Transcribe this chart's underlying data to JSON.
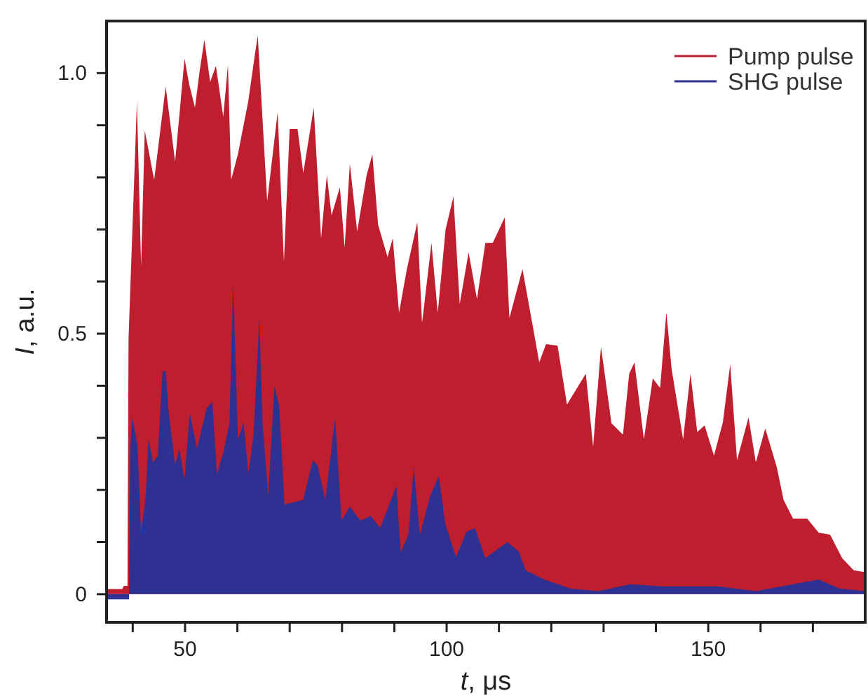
{
  "chart_data": {
    "type": "area",
    "xlabel": "t, μs",
    "ylabel": "I, a.u.",
    "xlim": [
      35,
      180
    ],
    "ylim": [
      -0.054,
      1.1
    ],
    "xticks": [
      {
        "value": 40,
        "label": null
      },
      50,
      {
        "value": 60,
        "label": null
      },
      {
        "value": 70,
        "label": null
      },
      {
        "value": 80,
        "label": null
      },
      {
        "value": 90,
        "label": null
      },
      100,
      {
        "value": 110,
        "label": null
      },
      {
        "value": 120,
        "label": null
      },
      {
        "value": 130,
        "label": null
      },
      {
        "value": 140,
        "label": null
      },
      150,
      {
        "value": 160,
        "label": null
      },
      {
        "value": 170,
        "label": null
      }
    ],
    "yticks": [
      0,
      {
        "value": 0.1,
        "label": null
      },
      {
        "value": 0.2,
        "label": null
      },
      {
        "value": 0.3,
        "label": null
      },
      {
        "value": 0.4,
        "label": null
      },
      0.5,
      {
        "value": 0.6,
        "label": null
      },
      {
        "value": 0.7,
        "label": null
      },
      {
        "value": 0.8,
        "label": null
      },
      {
        "value": 0.9,
        "label": null
      },
      {
        "value": 1,
        "label": "1.0"
      }
    ],
    "grid": false,
    "legend": "top right",
    "series": [
      {
        "name": "Pump pulse",
        "color": "#be1e2d",
        "x": [
          35,
          38.0,
          38.3,
          39.0,
          39.2,
          40.8,
          41.6,
          42.3,
          44.1,
          46.3,
          48.1,
          49.9,
          50.8,
          51.9,
          52.8,
          53.7,
          54.8,
          55.9,
          57.3,
          58.2,
          58.8,
          60.1,
          62.1,
          63.3,
          63.9,
          65.7,
          67.7,
          68.9,
          70.0,
          71.5,
          72.6,
          74.6,
          76.0,
          77.1,
          78.0,
          79.6,
          80.5,
          81.5,
          82.9,
          84.7,
          85.8,
          86.9,
          88.7,
          89.7,
          90.9,
          92.4,
          94.4,
          95.3,
          97.1,
          98.3,
          99.8,
          101.3,
          102.5,
          104.2,
          105.8,
          107.4,
          108.8,
          111.1,
          112.0,
          114.5,
          117.7,
          119.0,
          121.2,
          123.0,
          126.6,
          128.0,
          129.5,
          131.5,
          133.7,
          134.9,
          135.9,
          137.7,
          139.4,
          140.8,
          142.0,
          143.0,
          145.2,
          146.6,
          147.9,
          149.3,
          151.1,
          152.8,
          154.2,
          155.5,
          157.7,
          159.1,
          160.9,
          163.1,
          164.4,
          166.2,
          168.9,
          171.1,
          173.3,
          175.6,
          177.8,
          180.0
        ],
        "values": [
          0.01,
          0.01,
          0.016,
          0.016,
          0.49,
          0.945,
          0.63,
          0.89,
          0.795,
          0.974,
          0.83,
          1.028,
          0.978,
          0.934,
          1.005,
          1.064,
          0.983,
          1.014,
          0.916,
          1.016,
          0.795,
          0.844,
          0.947,
          1.032,
          1.072,
          0.754,
          0.925,
          0.638,
          0.893,
          0.893,
          0.808,
          0.934,
          0.683,
          0.804,
          0.727,
          0.781,
          0.665,
          0.826,
          0.696,
          0.804,
          0.844,
          0.709,
          0.647,
          0.683,
          0.54,
          0.624,
          0.714,
          0.52,
          0.674,
          0.54,
          0.7,
          0.763,
          0.557,
          0.656,
          0.566,
          0.674,
          0.674,
          0.723,
          0.53,
          0.624,
          0.445,
          0.48,
          0.477,
          0.364,
          0.423,
          0.283,
          0.475,
          0.328,
          0.306,
          0.423,
          0.445,
          0.297,
          0.414,
          0.396,
          0.541,
          0.432,
          0.297,
          0.423,
          0.311,
          0.324,
          0.266,
          0.33,
          0.441,
          0.257,
          0.339,
          0.253,
          0.318,
          0.244,
          0.181,
          0.145,
          0.145,
          0.118,
          0.114,
          0.069,
          0.046,
          0.042
        ]
      },
      {
        "name": "SHG pulse",
        "color": "#2e3192",
        "x": [
          35,
          39.3,
          39.5,
          39.9,
          40.9,
          41.6,
          42.5,
          43.0,
          43.9,
          44.8,
          45.7,
          46.3,
          46.9,
          48.1,
          48.9,
          49.9,
          50.9,
          52.3,
          54.1,
          55.2,
          56.1,
          57.4,
          58.5,
          59.2,
          60.1,
          61.2,
          62.1,
          63.1,
          64.2,
          64.8,
          65.9,
          67.1,
          68.0,
          69.0,
          71.0,
          72.6,
          74.4,
          75.3,
          76.8,
          78.7,
          79.9,
          81.5,
          83.5,
          85.5,
          87.3,
          90.4,
          91.2,
          92.7,
          93.7,
          94.9,
          96.9,
          98.5,
          99.8,
          101.8,
          103.8,
          105.4,
          107.4,
          111.6,
          113.8,
          115.1,
          118.7,
          123.6,
          129.0,
          135.1,
          141.4,
          145.8,
          152.0,
          159.1,
          166.2,
          171.1,
          175.1,
          180.0
        ],
        "values": [
          -0.01,
          -0.01,
          0.271,
          0.338,
          0.288,
          0.118,
          0.19,
          0.297,
          0.253,
          0.266,
          0.428,
          0.428,
          0.347,
          0.248,
          0.279,
          0.221,
          0.347,
          0.279,
          0.356,
          0.369,
          0.23,
          0.275,
          0.329,
          0.598,
          0.297,
          0.329,
          0.23,
          0.306,
          0.53,
          0.329,
          0.19,
          0.4,
          0.361,
          0.172,
          0.177,
          0.181,
          0.257,
          0.248,
          0.181,
          0.338,
          0.141,
          0.168,
          0.141,
          0.15,
          0.127,
          0.208,
          0.08,
          0.114,
          0.244,
          0.114,
          0.19,
          0.226,
          0.132,
          0.071,
          0.12,
          0.127,
          0.069,
          0.1,
          0.082,
          0.046,
          0.028,
          0.011,
          0.006,
          0.019,
          0.015,
          0.015,
          0.015,
          0.006,
          0.019,
          0.028,
          0.011,
          0.006
        ]
      }
    ]
  }
}
